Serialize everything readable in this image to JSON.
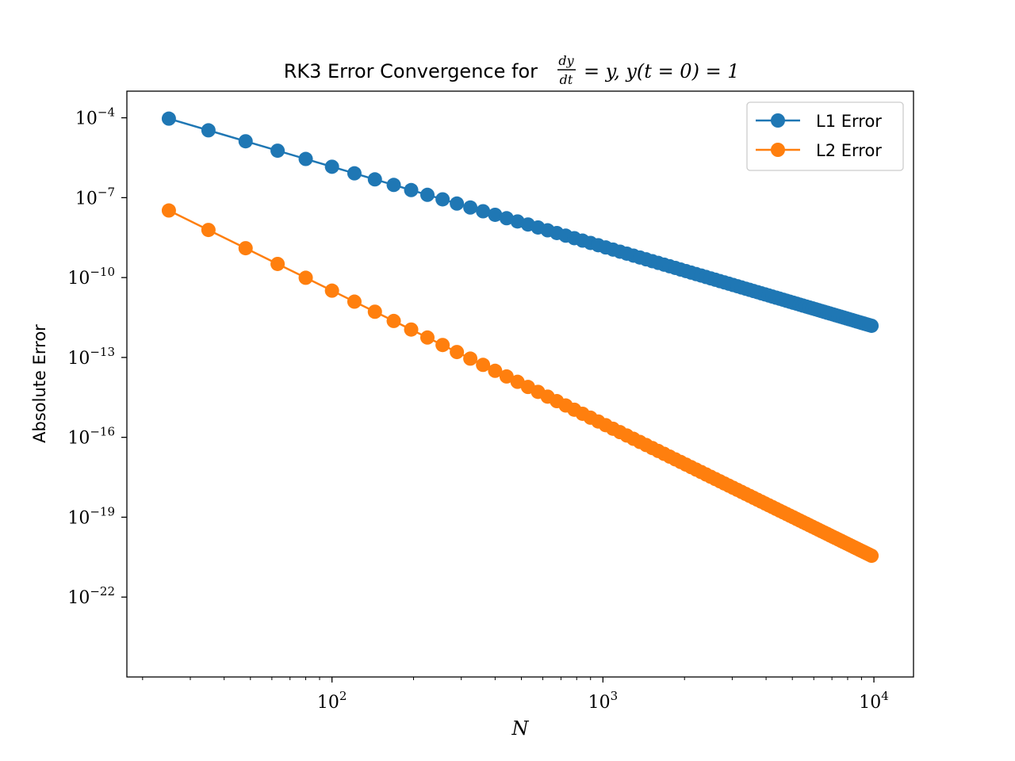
{
  "chart_data": {
    "type": "line",
    "title_text": "RK3 Error Convergence for ",
    "title_equation": "= y, y(t = 0) = 1",
    "title_fraction": {
      "numerator": "dy",
      "denominator": "dt"
    },
    "xlabel": "N",
    "ylabel": "Absolute Error",
    "x_scale": "log",
    "y_scale": "log",
    "xlim": [
      17.5,
      14000
    ],
    "ylim": [
      1e-25,
      0.001
    ],
    "x_ticks": [
      {
        "value": 100,
        "base": "10",
        "exp": "2"
      },
      {
        "value": 1000,
        "base": "10",
        "exp": "3"
      },
      {
        "value": 10000,
        "base": "10",
        "exp": "4"
      }
    ],
    "y_ticks": [
      {
        "value": 0.0001,
        "base": "10",
        "exp": "−4"
      },
      {
        "value": 1e-07,
        "base": "10",
        "exp": "−7"
      },
      {
        "value": 1e-10,
        "base": "10",
        "exp": "−10"
      },
      {
        "value": 1e-13,
        "base": "10",
        "exp": "−13"
      },
      {
        "value": 1e-16,
        "base": "10",
        "exp": "−16"
      },
      {
        "value": 1e-19,
        "base": "10",
        "exp": "−19"
      },
      {
        "value": 1e-22,
        "base": "10",
        "exp": "−22"
      }
    ],
    "x": [
      25,
      35,
      48,
      63,
      80,
      100,
      121,
      144,
      169,
      196,
      225,
      256,
      289,
      324,
      361,
      400,
      441,
      484,
      529,
      576,
      625,
      676,
      729,
      784,
      841,
      900,
      961,
      1024,
      1089,
      1156,
      1225,
      1296,
      1369,
      1444,
      1521,
      1600,
      1681,
      1764,
      1849,
      1936,
      2025,
      2116,
      2209,
      2304,
      2401,
      2500,
      2601,
      2704,
      2809,
      2916,
      3025,
      3136,
      3249,
      3364,
      3481,
      3600,
      3721,
      3844,
      3969,
      4096,
      4225,
      4356,
      4489,
      4624,
      4761,
      4900,
      5041,
      5184,
      5329,
      5476,
      5625,
      5776,
      5929,
      6084,
      6241,
      6400,
      6561,
      6724,
      6889,
      7056,
      7225,
      7396,
      7569,
      7744,
      7921,
      8100,
      8281,
      8464,
      8649,
      8836,
      9025,
      9216,
      9409,
      9604,
      9801
    ],
    "series": [
      {
        "name": "L1 Error",
        "color": "#1f77b4",
        "y0": 9.3e-05,
        "order": 3
      },
      {
        "name": "L2 Error",
        "color": "#ff7f0e",
        "y0": 3.3e-08,
        "order": 5
      }
    ],
    "legend_position": "top-right",
    "grid": false
  }
}
